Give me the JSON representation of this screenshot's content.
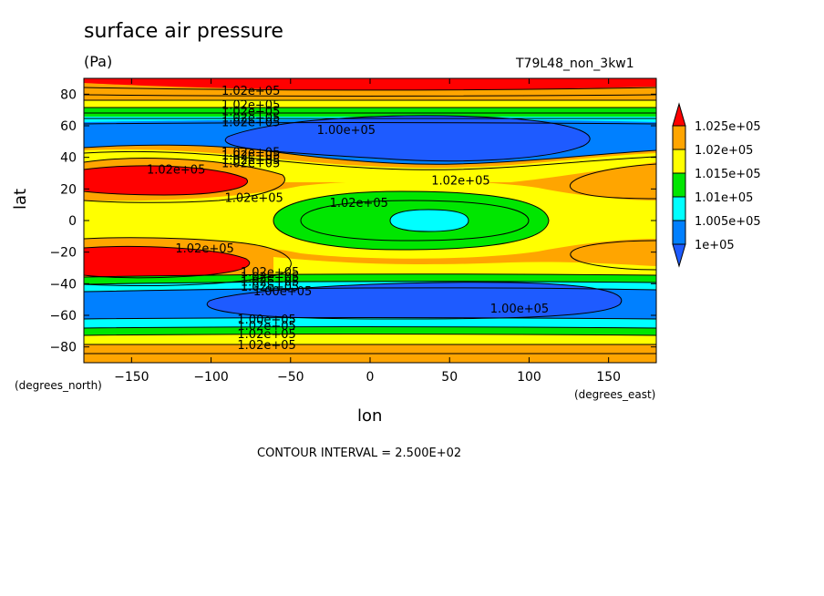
{
  "header": {
    "title": "surface air pressure",
    "units": "(Pa)",
    "run_id": "T79L48_non_3kw1"
  },
  "axes": {
    "xlabel": "lon",
    "ylabel": "lat",
    "xunits": "(degrees_east)",
    "yunits": "(degrees_north)"
  },
  "footer": {
    "contour_interval": "CONTOUR INTERVAL = 2.500E+02"
  },
  "chart_data": {
    "type": "heatmap",
    "title": "surface air pressure",
    "xlabel": "lon",
    "ylabel": "lat",
    "xlim": [
      -180,
      180
    ],
    "ylim": [
      -90,
      90
    ],
    "xticks": [
      -150,
      -100,
      -50,
      0,
      50,
      100,
      150
    ],
    "yticks": [
      -80,
      -60,
      -40,
      -20,
      0,
      20,
      40,
      60,
      80
    ],
    "contour_interval": 250,
    "colorbar": {
      "levels": [
        "1.025e+05",
        "1.02e+05",
        "1.015e+05",
        "1.01e+05",
        "1.005e+05",
        "1e+05"
      ],
      "colors": [
        "#ff0000",
        "#ffa500",
        "#ffff00",
        "#00e600",
        "#00ffff",
        "#0080ff",
        "#1e5bff"
      ]
    },
    "contour_labels": [
      {
        "text": "1.02e+05",
        "lon": -75,
        "lat": 82
      },
      {
        "text": "1.02e+05",
        "lon": -75,
        "lat": 73
      },
      {
        "text": "1.02e+05",
        "lon": -75,
        "lat": 69
      },
      {
        "text": "1.02e+05",
        "lon": -75,
        "lat": 65
      },
      {
        "text": "1.02e+05",
        "lon": -75,
        "lat": 62
      },
      {
        "text": "1.00e+05",
        "lon": -15,
        "lat": 57
      },
      {
        "text": "1.02e+05",
        "lon": -75,
        "lat": 43
      },
      {
        "text": "1.02e+05",
        "lon": -75,
        "lat": 41
      },
      {
        "text": "1.02e+05",
        "lon": -75,
        "lat": 38
      },
      {
        "text": "1.02e+05",
        "lon": -75,
        "lat": 36
      },
      {
        "text": "1.02e+05",
        "lon": -122,
        "lat": 32
      },
      {
        "text": "1.02e+05",
        "lon": 57,
        "lat": 25
      },
      {
        "text": "1.02e+05",
        "lon": -73,
        "lat": 14
      },
      {
        "text": "1.02e+05",
        "lon": -7,
        "lat": 11
      },
      {
        "text": "1.02e+05",
        "lon": -104,
        "lat": -18
      },
      {
        "text": "1.02e+05",
        "lon": -63,
        "lat": -33
      },
      {
        "text": "1.02e+05",
        "lon": -63,
        "lat": -36
      },
      {
        "text": "1.02e+05",
        "lon": -63,
        "lat": -39
      },
      {
        "text": "1.02e+05",
        "lon": -63,
        "lat": -42
      },
      {
        "text": "1.00e+05",
        "lon": -55,
        "lat": -45
      },
      {
        "text": "1.00e+05",
        "lon": 94,
        "lat": -56
      },
      {
        "text": "1.00e+05",
        "lon": -65,
        "lat": -63
      },
      {
        "text": "1.02e+05",
        "lon": -65,
        "lat": -67
      },
      {
        "text": "1.02e+05",
        "lon": -65,
        "lat": -72
      },
      {
        "text": "1.02e+05",
        "lon": -65,
        "lat": -79
      }
    ]
  }
}
